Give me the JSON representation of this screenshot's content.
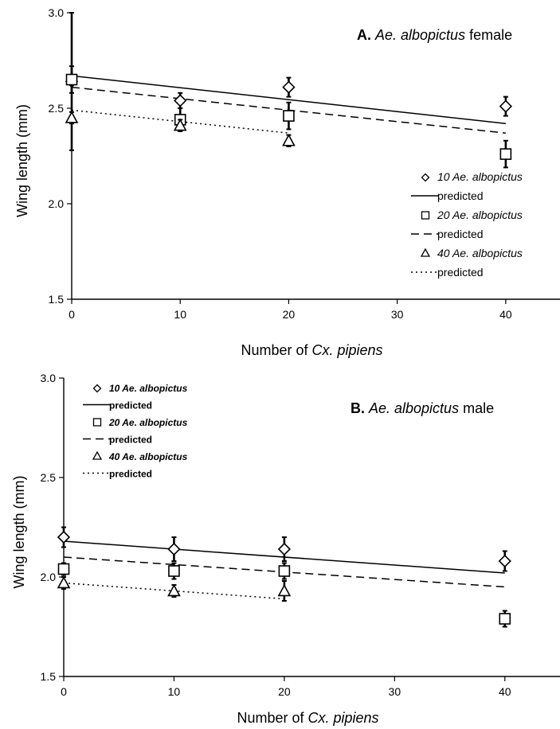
{
  "chart_data": [
    {
      "type": "scatter",
      "panel_label": "A.",
      "title_italic": "Ae. albopictus",
      "title_rest": " female",
      "ylabel": "Wing length (mm)",
      "xlabel_prefix": "Number of ",
      "xlabel_italic": "Cx. pipiens",
      "xlim": [
        0,
        45
      ],
      "ylim": [
        1.5,
        3.0
      ],
      "xticks": [
        0,
        10,
        20,
        30,
        40
      ],
      "yticks": [
        1.5,
        2.0,
        2.5,
        3.0
      ],
      "ytick_labels": [
        "1.5",
        "2.0",
        "2.5",
        "3.0"
      ],
      "legend_position": "right",
      "series": [
        {
          "name": "10 Ae. albopictus",
          "marker": "diamond",
          "x": [
            0,
            10,
            20,
            40
          ],
          "y": [
            2.64,
            2.54,
            2.61,
            2.51
          ],
          "error": [
            0.36,
            0.04,
            0.05,
            0.05
          ],
          "fit": {
            "name": "predicted",
            "style": "solid",
            "x": [
              0,
              40
            ],
            "y": [
              2.67,
              2.42
            ]
          }
        },
        {
          "name": "20 Ae. albopictus",
          "marker": "square",
          "x": [
            0,
            10,
            20,
            40
          ],
          "y": [
            2.65,
            2.44,
            2.46,
            2.26
          ],
          "error": [
            0.07,
            0.06,
            0.07,
            0.07
          ],
          "fit": {
            "name": "predicted",
            "style": "dashed",
            "x": [
              0,
              40
            ],
            "y": [
              2.61,
              2.37
            ]
          }
        },
        {
          "name": "40 Ae. albopictus",
          "marker": "triangle",
          "x": [
            0,
            10,
            20
          ],
          "y": [
            2.45,
            2.41,
            2.33
          ],
          "error": [
            0.03,
            0.03,
            0.03
          ],
          "fit": {
            "name": "predicted",
            "style": "dotted",
            "x": [
              0,
              20
            ],
            "y": [
              2.49,
              2.37
            ]
          }
        }
      ]
    },
    {
      "type": "scatter",
      "panel_label": "B.",
      "title_italic": "Ae. albopictus",
      "title_rest": " male",
      "ylabel": "Wing length (mm)",
      "xlabel_prefix": "Number of ",
      "xlabel_italic": "Cx. pipiens",
      "xlim": [
        0,
        45
      ],
      "ylim": [
        1.5,
        3.0
      ],
      "xticks": [
        0,
        10,
        20,
        30,
        40
      ],
      "yticks": [
        1.5,
        2.0,
        2.5,
        3.0
      ],
      "ytick_labels": [
        "1.5",
        "2.0",
        "2.5",
        "3.0"
      ],
      "legend_position": "top-left",
      "series": [
        {
          "name": "10 Ae. albopictus",
          "marker": "diamond",
          "x": [
            0,
            10,
            20,
            40
          ],
          "y": [
            2.2,
            2.14,
            2.14,
            2.08
          ],
          "error": [
            0.05,
            0.06,
            0.06,
            0.05
          ],
          "fit": {
            "name": "predicted",
            "style": "solid",
            "x": [
              0,
              40
            ],
            "y": [
              2.18,
              2.02
            ]
          }
        },
        {
          "name": "20 Ae. albopictus",
          "marker": "square",
          "x": [
            0,
            10,
            20,
            40
          ],
          "y": [
            2.04,
            2.03,
            2.03,
            1.79
          ],
          "error": [
            0.03,
            0.04,
            0.04,
            0.04
          ],
          "fit": {
            "name": "predicted",
            "style": "dashed",
            "x": [
              0,
              40
            ],
            "y": [
              2.1,
              1.95
            ]
          }
        },
        {
          "name": "40 Ae. albopictus",
          "marker": "triangle",
          "x": [
            0,
            10,
            20
          ],
          "y": [
            1.97,
            1.93,
            1.93
          ],
          "error": [
            0.03,
            0.03,
            0.05
          ],
          "fit": {
            "name": "predicted",
            "style": "dotted",
            "x": [
              0,
              20
            ],
            "y": [
              1.97,
              1.89
            ]
          }
        }
      ]
    }
  ]
}
